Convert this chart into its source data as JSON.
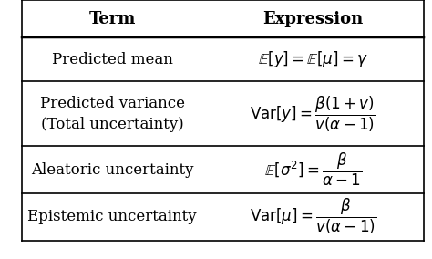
{
  "title_term": "Term",
  "title_expr": "Expression",
  "rows": [
    {
      "term": "Predicted mean",
      "term_multiline": false,
      "expr": "$\\mathbb{E}[y] = \\mathbb{E}[\\mu] = \\gamma$"
    },
    {
      "term": "Predicted variance\n(Total uncertainty)",
      "term_multiline": true,
      "expr": "$\\mathrm{Var}[y] = \\dfrac{\\beta(1+v)}{v(\\alpha-1)}$"
    },
    {
      "term": "Aleatoric uncertainty",
      "term_multiline": false,
      "expr": "$\\mathbb{E}[\\sigma^2] = \\dfrac{\\beta}{\\alpha-1}$"
    },
    {
      "term": "Epistemic uncertainty",
      "term_multiline": false,
      "expr": "$\\mathrm{Var}[\\mu] = \\dfrac{\\beta}{v(\\alpha-1)}$"
    }
  ],
  "bg_color": "#ffffff",
  "text_color": "#000000",
  "header_fontsize": 13,
  "body_fontsize": 12,
  "fig_width": 4.74,
  "fig_height": 2.84
}
